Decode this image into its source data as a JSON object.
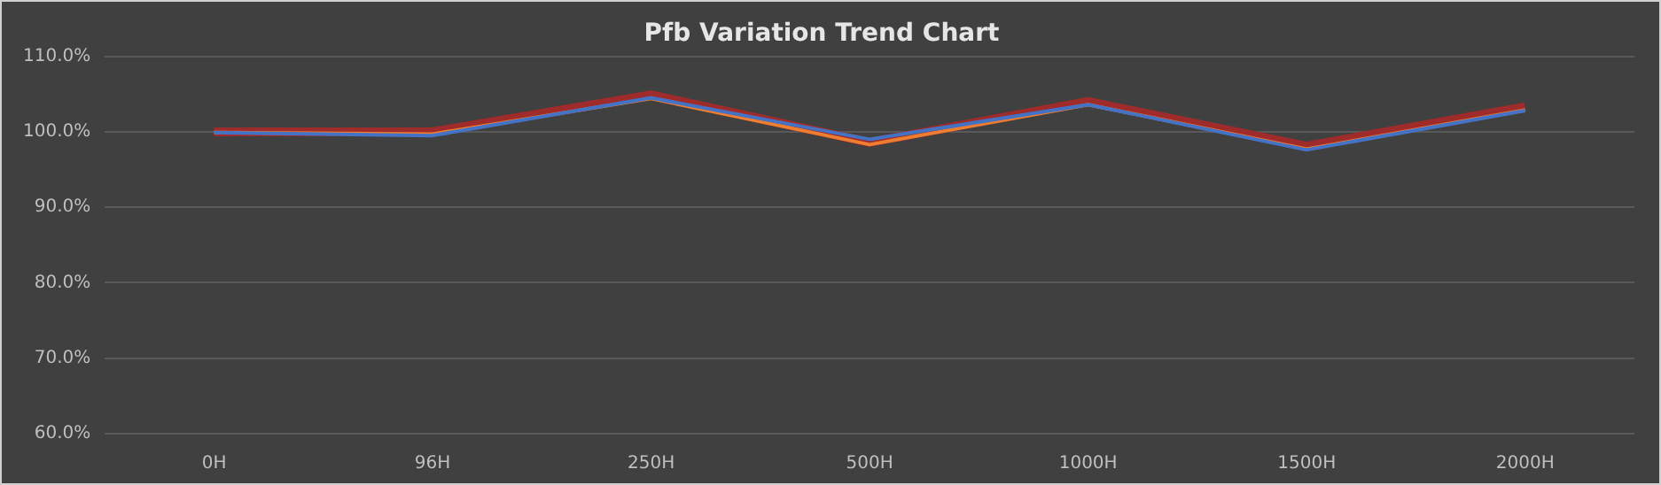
{
  "chart_data": {
    "type": "line",
    "title": "Pfb Variation Trend Chart",
    "categories": [
      "0H",
      "96H",
      "250H",
      "500H",
      "1000H",
      "1500H",
      "2000H"
    ],
    "series": [
      {
        "color": "#4472c4",
        "values": [
          99.9,
          99.5,
          104.5,
          99.0,
          103.6,
          97.6,
          102.8
        ]
      },
      {
        "color": "#ed7d31",
        "values": [
          99.9,
          99.7,
          104.4,
          98.3,
          103.6,
          97.7,
          102.9
        ]
      },
      {
        "color": "#a02b2b",
        "values": [
          100,
          100,
          104.9,
          98.6,
          104.0,
          98.1,
          103.3
        ]
      }
    ],
    "ylim": [
      60,
      110
    ],
    "yticks": [
      {
        "value": 60,
        "label": "60.0%"
      },
      {
        "value": 70,
        "label": "70.0%"
      },
      {
        "value": 80,
        "label": "80.0%"
      },
      {
        "value": 90,
        "label": "90.0%"
      },
      {
        "value": 100,
        "label": "100.0%"
      },
      {
        "value": 110,
        "label": "110.0%"
      }
    ],
    "grid": "y",
    "legend": false,
    "marker": "none",
    "line_style": "solid"
  }
}
